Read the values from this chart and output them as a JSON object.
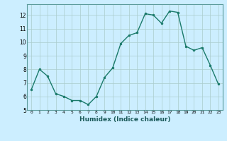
{
  "x": [
    0,
    1,
    2,
    3,
    4,
    5,
    6,
    7,
    8,
    9,
    10,
    11,
    12,
    13,
    14,
    15,
    16,
    17,
    18,
    19,
    20,
    21,
    22,
    23
  ],
  "y": [
    6.5,
    8.0,
    7.5,
    6.2,
    6.0,
    5.7,
    5.7,
    5.4,
    6.0,
    7.4,
    8.1,
    9.9,
    10.5,
    10.7,
    12.1,
    12.0,
    11.4,
    12.3,
    12.2,
    9.7,
    9.4,
    9.6,
    8.3,
    6.9
  ],
  "xlabel": "Humidex (Indice chaleur)",
  "xlim": [
    -0.5,
    23.5
  ],
  "ylim": [
    5,
    12.8
  ],
  "yticks": [
    5,
    6,
    7,
    8,
    9,
    10,
    11,
    12
  ],
  "xticks": [
    0,
    1,
    2,
    3,
    4,
    5,
    6,
    7,
    8,
    9,
    10,
    11,
    12,
    13,
    14,
    15,
    16,
    17,
    18,
    19,
    20,
    21,
    22,
    23
  ],
  "line_color": "#1a7a6a",
  "marker_color": "#1a7a6a",
  "bg_color": "#cceeff",
  "grid_color": "#aacccc",
  "axis_bg": "#cceeff"
}
